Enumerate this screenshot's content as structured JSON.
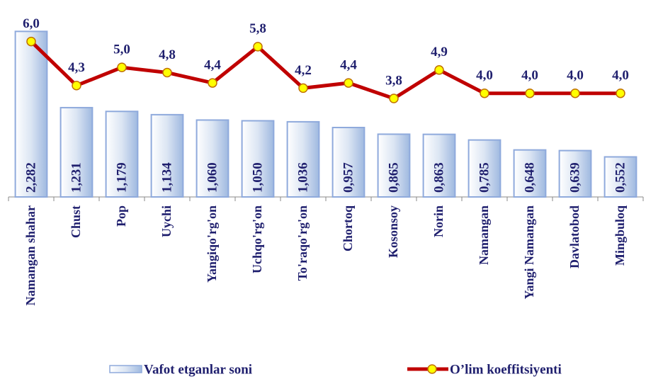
{
  "chart_data": {
    "type": "combo",
    "categories": [
      "Namangan shahar",
      "Chust",
      "Pop",
      "Uychi",
      "Yangiqo'rg'on",
      "Uchqo'rg'on",
      "To'raqo'rg'on",
      "Chortoq",
      "Kosonsoy",
      "Norin",
      "Namangan",
      "Yangi Namangan",
      "Davlatobod",
      "Mingbuloq"
    ],
    "ylim": [
      0,
      2.5
    ],
    "y2lim": [
      0,
      7
    ],
    "series": [
      {
        "name": "Vafot etganlar soni",
        "type": "bar",
        "color": "#b8cce4",
        "edge_color": "#8faadc",
        "values": [
          2.282,
          1.231,
          1.179,
          1.134,
          1.06,
          1.05,
          1.036,
          0.957,
          0.865,
          0.863,
          0.785,
          0.648,
          0.639,
          0.552
        ],
        "value_labels": [
          "2,282",
          "1,231",
          "1,179",
          "1,134",
          "1,060",
          "1,050",
          "1,036",
          "0,957",
          "0,865",
          "0,863",
          "0,785",
          "0,648",
          "0,639",
          "0,552"
        ]
      },
      {
        "name": "O’lim koeffitsiyenti",
        "type": "line",
        "axis": "y2",
        "color": "#c00000",
        "marker_color": "#ffff00",
        "values": [
          6.0,
          4.3,
          5.0,
          4.8,
          4.4,
          5.8,
          4.2,
          4.4,
          3.8,
          4.9,
          4.0,
          4.0,
          4.0,
          4.0
        ],
        "value_labels": [
          "6,0",
          "4,3",
          "5,0",
          "4,8",
          "4,4",
          "5,8",
          "4,2",
          "4,4",
          "3,8",
          "4,9",
          "4,0",
          "4,0",
          "4,0",
          "4,0"
        ]
      }
    ]
  }
}
